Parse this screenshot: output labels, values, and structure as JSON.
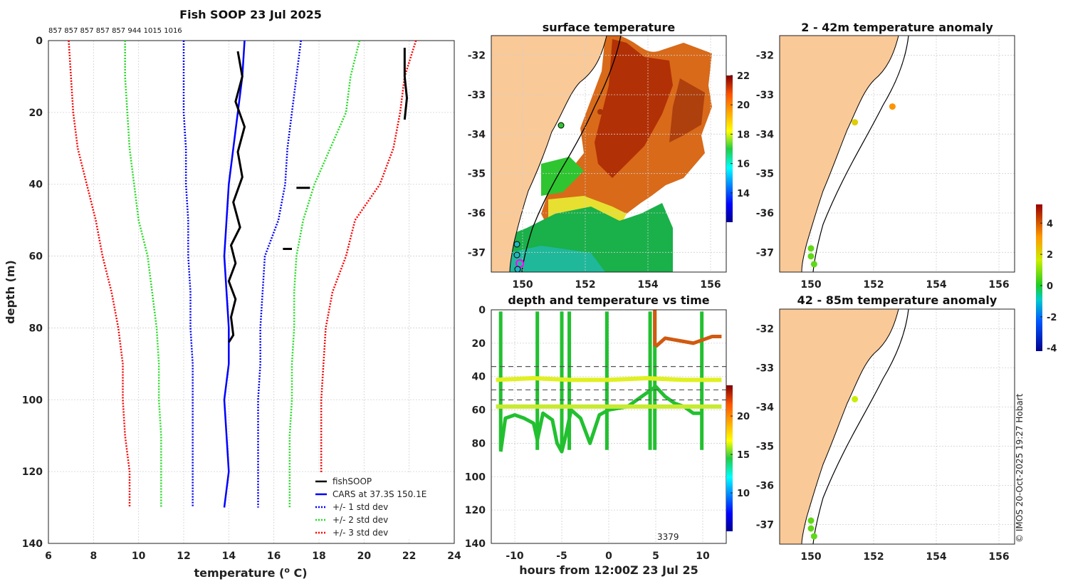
{
  "colors": {
    "land": "#f9c998",
    "fishsoop": "#000000",
    "cars": "#0000ff",
    "std1": "#0000ff",
    "std2": "#22dd22",
    "std3": "#ff0000"
  },
  "profile": {
    "title": "Fish SOOP 23 Jul 2025",
    "sensor_ids": "857 857 857 857 857 944 1015 1016",
    "xlabel": "temperature (",
    "xlabel_sup": "o",
    "xlabel_end": " C)",
    "ylabel": "depth (m)",
    "xticks": [
      "6",
      "8",
      "10",
      "12",
      "14",
      "16",
      "18",
      "20",
      "22",
      "24"
    ],
    "yticks": [
      "0",
      "20",
      "40",
      "60",
      "80",
      "100",
      "120",
      "140"
    ],
    "legend": [
      "fishSOOP",
      "CARS at 37.3S 150.1E",
      "+/- 1 std dev",
      "+/- 2 std dev",
      "+/- 3 std dev"
    ]
  },
  "chart_data": [
    {
      "type": "line",
      "title": "Fish SOOP 23 Jul 2025",
      "xlabel": "temperature (o C)",
      "ylabel": "depth (m)",
      "xlim": [
        6,
        24
      ],
      "ylim": [
        140,
        0
      ],
      "series": [
        {
          "name": "CARS at 37.3S 150.1E",
          "temp": [
            14.7,
            14.6,
            14.4,
            14.2,
            14.0,
            13.9,
            13.8,
            13.9,
            14.0,
            14.0,
            13.8,
            13.9,
            14.0,
            13.8
          ],
          "depth": [
            0,
            10,
            20,
            30,
            40,
            50,
            60,
            70,
            80,
            90,
            100,
            110,
            120,
            130
          ]
        },
        {
          "name": "+/- 1 std dev low",
          "temp": [
            12.0,
            12.0,
            12.0,
            12.1,
            12.1,
            12.2,
            12.2,
            12.3,
            12.3,
            12.4,
            12.4,
            12.4,
            12.4,
            12.4
          ],
          "depth": [
            0,
            10,
            20,
            30,
            40,
            50,
            60,
            70,
            80,
            90,
            100,
            110,
            120,
            130
          ]
        },
        {
          "name": "+/- 1 std dev high",
          "temp": [
            17.2,
            17.0,
            16.8,
            16.6,
            16.5,
            16.2,
            15.6,
            15.5,
            15.4,
            15.4,
            15.3,
            15.3,
            15.3,
            15.3
          ],
          "depth": [
            0,
            10,
            20,
            30,
            40,
            50,
            60,
            70,
            80,
            90,
            100,
            110,
            120,
            130
          ]
        },
        {
          "name": "+/- 2 std dev low",
          "temp": [
            9.4,
            9.4,
            9.5,
            9.6,
            9.8,
            10.0,
            10.4,
            10.6,
            10.8,
            10.9,
            10.9,
            11.0,
            11.0,
            11.0
          ],
          "depth": [
            0,
            10,
            20,
            30,
            40,
            50,
            60,
            70,
            80,
            90,
            100,
            110,
            120,
            130
          ]
        },
        {
          "name": "+/- 2 std dev high",
          "temp": [
            19.8,
            19.4,
            19.2,
            18.5,
            17.8,
            17.3,
            17.0,
            16.9,
            16.9,
            16.8,
            16.8,
            16.7,
            16.7,
            16.7
          ],
          "depth": [
            0,
            10,
            20,
            30,
            40,
            50,
            60,
            70,
            80,
            90,
            100,
            110,
            120,
            130
          ]
        },
        {
          "name": "+/- 3 std dev low",
          "temp": [
            6.9,
            7.0,
            7.1,
            7.3,
            7.7,
            8.1,
            8.4,
            8.8,
            9.1,
            9.3,
            9.3,
            9.4,
            9.6,
            9.6
          ],
          "depth": [
            0,
            10,
            20,
            30,
            40,
            50,
            60,
            70,
            80,
            90,
            100,
            110,
            120,
            130
          ]
        },
        {
          "name": "+/- 3 std dev high",
          "temp": [
            22.3,
            21.8,
            21.6,
            21.3,
            20.7,
            19.6,
            19.2,
            18.6,
            18.3,
            18.2,
            18.1,
            18.1,
            18.1,
            18.1
          ],
          "depth": [
            0,
            10,
            20,
            30,
            40,
            50,
            60,
            70,
            80,
            90,
            100,
            110,
            120,
            130
          ]
        },
        {
          "name": "fishSOOP",
          "temp": [
            14.4,
            14.6,
            14.3,
            14.7,
            14.4,
            14.6,
            14.2,
            14.5,
            14.1,
            14.3,
            14.0,
            14.3,
            14.1,
            14.2,
            14.0
          ],
          "depth": [
            3,
            10,
            17,
            24,
            31,
            38,
            45,
            52,
            57,
            62,
            67,
            72,
            77,
            82,
            84
          ]
        },
        {
          "name": "fishSOOP (warm)",
          "temp": [
            21.8,
            21.8,
            21.9,
            21.8
          ],
          "depth": [
            2,
            10,
            16,
            22
          ]
        },
        {
          "name": "fishSOOP (41m)",
          "temp": [
            17.0,
            17.6
          ],
          "depth": [
            41,
            41
          ]
        },
        {
          "name": "fishSOOP (58m)",
          "temp": [
            16.4,
            16.8
          ],
          "depth": [
            58,
            58
          ]
        }
      ]
    },
    {
      "type": "heatmap",
      "title": "surface temperature",
      "xlim": [
        149,
        156.5
      ],
      "ylim": [
        -37.5,
        -31.5
      ],
      "xticks": [
        "150",
        "152",
        "154",
        "156"
      ],
      "yticks": [
        "-32",
        "-33",
        "-34",
        "-35",
        "-36",
        "-37"
      ],
      "colorbar": [
        "14",
        "16",
        "18",
        "20",
        "22"
      ],
      "colorbar_range": [
        12,
        22
      ]
    },
    {
      "type": "scatter",
      "title": "depth and temperature vs time",
      "xlabel": "hours from 12:00Z 23 Jul 25",
      "xlim": [
        -12.5,
        12.5
      ],
      "ylim": [
        140,
        0
      ],
      "xticks": [
        "-10",
        "-5",
        "0",
        "5",
        "10"
      ],
      "yticks": [
        "0",
        "20",
        "40",
        "60",
        "80",
        "100",
        "120",
        "140"
      ],
      "colorbar": [
        "10",
        "15",
        "20"
      ],
      "colorbar_range": [
        5,
        24
      ],
      "annotation": "3379",
      "series": [
        {
          "name": "deep profile",
          "hours": [
            -11.5,
            -11,
            -10,
            -9,
            -8,
            -7.6,
            -7,
            -6,
            -5.5,
            -5,
            -4.6,
            -4,
            -3,
            -2,
            -1,
            0,
            2,
            4,
            4.5,
            5,
            6,
            7,
            8,
            9,
            10
          ],
          "depth": [
            85,
            65,
            63,
            65,
            68,
            78,
            62,
            66,
            80,
            85,
            76,
            60,
            65,
            80,
            63,
            60,
            58,
            50,
            48,
            46,
            52,
            56,
            58,
            62,
            62
          ]
        },
        {
          "name": "upper line",
          "hours": [
            -12,
            -8,
            -4,
            0,
            4,
            8,
            12
          ],
          "depth": [
            42,
            41,
            42,
            42,
            41,
            42,
            42
          ]
        },
        {
          "name": "lower line",
          "hours": [
            -12,
            -8,
            -4,
            0,
            4,
            8,
            12
          ],
          "depth": [
            58,
            58,
            58,
            58,
            58,
            58,
            58
          ]
        },
        {
          "name": "warm",
          "hours": [
            5,
            6,
            7,
            8,
            9,
            10,
            11,
            12
          ],
          "depth": [
            22,
            17,
            18,
            19,
            20,
            18,
            16,
            16
          ]
        }
      ]
    },
    {
      "type": "scatter",
      "title": "2 - 42m temperature anomaly",
      "xticks": [
        "150",
        "152",
        "154",
        "156"
      ],
      "yticks": [
        "-32",
        "-33",
        "-34",
        "-35",
        "-36",
        "-37"
      ],
      "points": [
        {
          "lon": 151.4,
          "lat": -33.7,
          "anomaly": 2.2
        },
        {
          "lon": 152.6,
          "lat": -33.3,
          "anomaly": 3.2
        },
        {
          "lon": 150.0,
          "lat": -36.9,
          "anomaly": 0.6
        },
        {
          "lon": 150.0,
          "lat": -37.1,
          "anomaly": 0.6
        },
        {
          "lon": 150.1,
          "lat": -37.3,
          "anomaly": 0.6
        }
      ]
    },
    {
      "type": "scatter",
      "title": "42 - 85m temperature anomaly",
      "xticks": [
        "150",
        "152",
        "154",
        "156"
      ],
      "yticks": [
        "-32",
        "-33",
        "-34",
        "-35",
        "-36",
        "-37"
      ],
      "points": [
        {
          "lon": 151.4,
          "lat": -33.8,
          "anomaly": 1.6
        },
        {
          "lon": 150.0,
          "lat": -36.9,
          "anomaly": 0.6
        },
        {
          "lon": 150.0,
          "lat": -37.1,
          "anomaly": 0.6
        },
        {
          "lon": 150.1,
          "lat": -37.3,
          "anomaly": 0.6
        }
      ],
      "colorbar": [
        "-4",
        "-2",
        "0",
        "2",
        "4"
      ],
      "colorbar_range": [
        -4.2,
        5.2
      ]
    }
  ],
  "panels": {
    "sst_title": "surface temperature",
    "time_title": "depth and temperature vs time",
    "time_xlabel": "hours from 12:00Z 23 Jul 25",
    "time_annotation": "3379",
    "anom1_title": "2 - 42m temperature anomaly",
    "anom2_title": "42 - 85m temperature anomaly",
    "map_xticks": [
      "150",
      "152",
      "154",
      "156"
    ],
    "map_yticks": [
      "-32",
      "-33",
      "-34",
      "-35",
      "-36",
      "-37"
    ],
    "sst_cbar_ticks": [
      "14",
      "16",
      "18",
      "20",
      "22"
    ],
    "time_cbar_ticks": [
      "10",
      "15",
      "20"
    ],
    "time_xticks": [
      "-10",
      "-5",
      "0",
      "5",
      "10"
    ],
    "anom_cbar_ticks": [
      "-4",
      "-2",
      "0",
      "2",
      "4"
    ]
  },
  "credit": "© IMOS 20-Oct-2025 19:27 Hobart"
}
